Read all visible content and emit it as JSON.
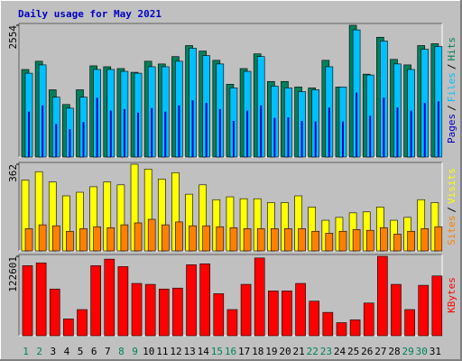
{
  "title": "Daily usage for May 2021",
  "legend_separator": "/",
  "chart_data": [
    {
      "type": "bar",
      "ylim": [
        0,
        2554
      ],
      "yticks": [
        2554
      ],
      "series": [
        {
          "name": "Pages",
          "color": "#0000c0",
          "values": [
            880,
            1000,
            640,
            540,
            680,
            1150,
            900,
            930,
            860,
            950,
            880,
            1000,
            1100,
            1050,
            930,
            700,
            900,
            1000,
            760,
            770,
            700,
            690,
            960,
            690,
            1250,
            800,
            1150,
            960,
            900,
            1050,
            1080
          ]
        },
        {
          "name": "Files",
          "color": "#00c0ff",
          "values": [
            1625,
            1786,
            1161,
            947,
            1161,
            1697,
            1697,
            1661,
            1625,
            1750,
            1750,
            1857,
            2108,
            1965,
            1804,
            1340,
            1661,
            1947,
            1375,
            1340,
            1268,
            1304,
            1750,
            1357,
            2465,
            1590,
            2250,
            1804,
            1697,
            2090,
            2143
          ]
        },
        {
          "name": "Hits",
          "color": "#00805c",
          "values": [
            1697,
            1857,
            1304,
            1018,
            1304,
            1768,
            1750,
            1715,
            1643,
            1857,
            1804,
            1947,
            2161,
            2054,
            1875,
            1411,
            1715,
            2000,
            1465,
            1465,
            1357,
            1340,
            1875,
            1357,
            2554,
            1607,
            2322,
            1893,
            1786,
            2161,
            2197
          ]
        }
      ]
    },
    {
      "type": "bar",
      "ylim": [
        0,
        362
      ],
      "yticks": [
        362
      ],
      "series": [
        {
          "name": "Sites",
          "color": "#ff8000",
          "values": [
            93,
            109,
            105,
            82,
            93,
            101,
            97,
            109,
            117,
            132,
            109,
            121,
            105,
            105,
            101,
            97,
            93,
            93,
            93,
            93,
            93,
            82,
            74,
            82,
            89,
            86,
            97,
            70,
            82,
            93,
            101
          ]
        },
        {
          "name": "Visits",
          "color": "#ffff00",
          "values": [
            296,
            331,
            288,
            230,
            245,
            268,
            288,
            276,
            362,
            342,
            300,
            327,
            237,
            276,
            214,
            226,
            218,
            218,
            202,
            202,
            230,
            183,
            128,
            140,
            159,
            163,
            183,
            128,
            140,
            214,
            202
          ]
        }
      ]
    },
    {
      "type": "bar",
      "ylim": [
        0,
        122601
      ],
      "yticks": [
        122601
      ],
      "categories": [
        "1",
        "2",
        "3",
        "4",
        "5",
        "6",
        "7",
        "8",
        "9",
        "10",
        "11",
        "12",
        "13",
        "14",
        "15",
        "16",
        "17",
        "18",
        "19",
        "20",
        "21",
        "22",
        "23",
        "24",
        "25",
        "26",
        "27",
        "28",
        "29",
        "30",
        "31"
      ],
      "category_colors": [
        "#00805c",
        "#00805c",
        "#000000",
        "#000000",
        "#000000",
        "#000000",
        "#000000",
        "#00805c",
        "#00805c",
        "#000000",
        "#000000",
        "#000000",
        "#000000",
        "#000000",
        "#00805c",
        "#00805c",
        "#000000",
        "#000000",
        "#000000",
        "#000000",
        "#000000",
        "#00805c",
        "#00805c",
        "#000000",
        "#000000",
        "#000000",
        "#000000",
        "#000000",
        "#00805c",
        "#00805c",
        "#000000"
      ],
      "series": [
        {
          "name": "KBytes",
          "color": "#ff0000",
          "values": [
            108150,
            112476,
            72100,
            25956,
            40376,
            108150,
            118244,
            106708,
            80752,
            79310,
            72100,
            73542,
            109592,
            111034,
            64890,
            40376,
            79310,
            120000,
            69216,
            69216,
            80752,
            53354,
            36050,
            20188,
            24514,
            50470,
            122601,
            79310,
            40376,
            77868,
            92288
          ]
        }
      ]
    }
  ]
}
